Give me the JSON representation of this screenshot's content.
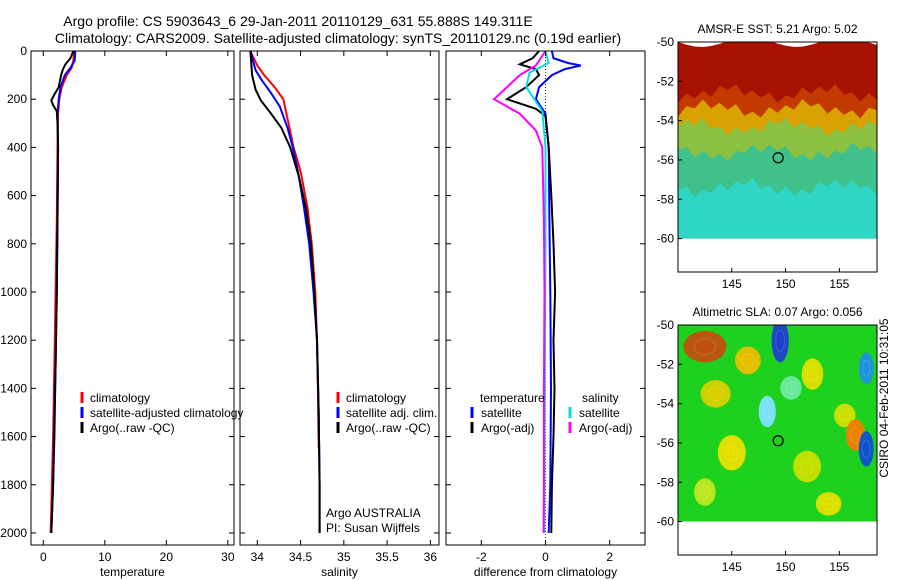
{
  "title": {
    "line1": "Argo profile: CS 5903643_6 29-Jan-2011 20110129_631 55.888S 149.311E",
    "line2": "Climatology: CARS2009. Satellite-adjusted climatology: synTS_20110129.nc (0.19d earlier)"
  },
  "credit": "CSIRO 04-Feb-2011 10:31:05",
  "chart_data": [
    {
      "type": "line",
      "panel": "temperature",
      "xlabel": "temperature",
      "xlim": [
        -2,
        31
      ],
      "ylim": [
        0,
        2050
      ],
      "y_reversed": true,
      "xticks": [
        "0",
        "10",
        "20",
        "30"
      ],
      "xtick_values": [
        0,
        10,
        20,
        30
      ],
      "yticks": [
        "0",
        "200",
        "400",
        "600",
        "800",
        "1000",
        "1200",
        "1400",
        "1600",
        "1800",
        "2000"
      ],
      "ytick_values": [
        0,
        200,
        400,
        600,
        800,
        1000,
        1200,
        1400,
        1600,
        1800,
        2000
      ],
      "legend_position": "lower-center",
      "series": [
        {
          "name": "climatology",
          "color": "#ff0000",
          "points": [
            [
              5.0,
              0
            ],
            [
              4.9,
              40
            ],
            [
              4.6,
              70
            ],
            [
              3.8,
              100
            ],
            [
              3.0,
              150
            ],
            [
              2.6,
              200
            ],
            [
              2.4,
              260
            ],
            [
              2.3,
              400
            ],
            [
              2.2,
              700
            ],
            [
              2.0,
              1000
            ],
            [
              1.8,
              1300
            ],
            [
              1.6,
              1600
            ],
            [
              1.4,
              1800
            ],
            [
              1.2,
              2000
            ]
          ]
        },
        {
          "name": "satellite-adjusted climatology",
          "color": "#0000ff",
          "points": [
            [
              5.2,
              0
            ],
            [
              5.1,
              40
            ],
            [
              4.4,
              70
            ],
            [
              3.5,
              100
            ],
            [
              2.8,
              150
            ],
            [
              2.5,
              200
            ],
            [
              2.3,
              260
            ],
            [
              2.4,
              400
            ],
            [
              2.3,
              700
            ],
            [
              2.2,
              1000
            ],
            [
              2.0,
              1300
            ],
            [
              1.8,
              1500
            ],
            [
              1.6,
              1800
            ],
            [
              1.3,
              2000
            ]
          ]
        },
        {
          "name": "Argo(..raw -QC)",
          "color": "#000000",
          "points": [
            [
              4.9,
              0
            ],
            [
              4.4,
              30
            ],
            [
              3.6,
              55
            ],
            [
              3.2,
              75
            ],
            [
              2.9,
              100
            ],
            [
              2.5,
              150
            ],
            [
              1.8,
              180
            ],
            [
              1.3,
              205
            ],
            [
              1.6,
              225
            ],
            [
              2.2,
              250
            ],
            [
              2.3,
              300
            ],
            [
              2.4,
              400
            ],
            [
              2.3,
              700
            ],
            [
              2.2,
              1000
            ],
            [
              2.0,
              1300
            ],
            [
              1.8,
              1600
            ],
            [
              1.6,
              1800
            ],
            [
              1.3,
              2000
            ]
          ]
        }
      ]
    },
    {
      "type": "line",
      "panel": "salinity",
      "xlabel": "salinity",
      "xlim": [
        33.8,
        36.1
      ],
      "ylim": [
        0,
        2050
      ],
      "y_reversed": true,
      "xticks": [
        "34",
        "34.5",
        "35",
        "35.5",
        "36"
      ],
      "xtick_values": [
        34,
        34.5,
        35,
        35.5,
        36
      ],
      "legend_position": "lower-center",
      "annotation": [
        "Argo AUSTRALIA",
        "PI: Susan Wijffels"
      ],
      "series": [
        {
          "name": "climatology",
          "color": "#ff0000",
          "points": [
            [
              33.92,
              0
            ],
            [
              34.0,
              60
            ],
            [
              34.08,
              100
            ],
            [
              34.2,
              150
            ],
            [
              34.3,
              200
            ],
            [
              34.36,
              300
            ],
            [
              34.42,
              400
            ],
            [
              34.5,
              500
            ],
            [
              34.58,
              650
            ],
            [
              34.63,
              800
            ],
            [
              34.67,
              1000
            ],
            [
              34.69,
              1200
            ],
            [
              34.7,
              1400
            ],
            [
              34.71,
              1650
            ]
          ]
        },
        {
          "name": "satellite adj. clim.",
          "color": "#0000ff",
          "points": [
            [
              33.92,
              0
            ],
            [
              33.98,
              80
            ],
            [
              34.05,
              120
            ],
            [
              34.15,
              170
            ],
            [
              34.26,
              230
            ],
            [
              34.35,
              320
            ],
            [
              34.41,
              400
            ],
            [
              34.47,
              500
            ],
            [
              34.54,
              650
            ],
            [
              34.6,
              800
            ],
            [
              34.65,
              1000
            ],
            [
              34.69,
              1200
            ],
            [
              34.71,
              1500
            ],
            [
              34.72,
              1800
            ],
            [
              34.72,
              2000
            ]
          ]
        },
        {
          "name": "Argo(..raw -QC)",
          "color": "#000000",
          "points": [
            [
              33.92,
              0
            ],
            [
              33.94,
              100
            ],
            [
              33.98,
              160
            ],
            [
              34.04,
              205
            ],
            [
              34.16,
              260
            ],
            [
              34.28,
              320
            ],
            [
              34.38,
              400
            ],
            [
              34.48,
              520
            ],
            [
              34.56,
              650
            ],
            [
              34.62,
              800
            ],
            [
              34.66,
              1000
            ],
            [
              34.69,
              1200
            ],
            [
              34.71,
              1500
            ],
            [
              34.72,
              1800
            ],
            [
              34.72,
              2000
            ]
          ]
        }
      ]
    },
    {
      "type": "line",
      "panel": "difference",
      "xlabel": "difference from climatology",
      "xlim": [
        -3.1,
        3.1
      ],
      "ylim": [
        0,
        2050
      ],
      "y_reversed": true,
      "xticks": [
        "-2",
        "0",
        "2"
      ],
      "xtick_values": [
        -2,
        0,
        2
      ],
      "legend_position": "lower-center",
      "legend_groups": [
        "temperature",
        "salinity"
      ],
      "series": [
        {
          "name": "satellite",
          "group": "temperature",
          "color": "#0000ff",
          "points": [
            [
              0.2,
              0
            ],
            [
              0.25,
              30
            ],
            [
              0.7,
              50
            ],
            [
              1.1,
              60
            ],
            [
              0.6,
              75
            ],
            [
              0.2,
              100
            ],
            [
              -0.2,
              150
            ],
            [
              -0.3,
              200
            ],
            [
              0.0,
              260
            ],
            [
              0.1,
              400
            ],
            [
              0.12,
              700
            ],
            [
              0.15,
              1000
            ],
            [
              0.17,
              1400
            ],
            [
              0.15,
              1800
            ],
            [
              0.1,
              2000
            ]
          ]
        },
        {
          "name": "Argo(-adj)",
          "group": "temperature",
          "color": "#000000",
          "points": [
            [
              -0.2,
              0
            ],
            [
              -0.4,
              30
            ],
            [
              -0.8,
              55
            ],
            [
              -0.3,
              75
            ],
            [
              -0.2,
              100
            ],
            [
              -0.6,
              150
            ],
            [
              -1.2,
              200
            ],
            [
              -0.3,
              240
            ],
            [
              0.0,
              270
            ],
            [
              0.1,
              400
            ],
            [
              0.18,
              600
            ],
            [
              0.25,
              800
            ],
            [
              0.3,
              1000
            ],
            [
              0.25,
              1200
            ],
            [
              0.28,
              1400
            ],
            [
              0.25,
              1600
            ],
            [
              0.2,
              1800
            ],
            [
              0.18,
              2000
            ]
          ]
        },
        {
          "name": "satellite",
          "group": "salinity",
          "color": "#00e0e0",
          "points": [
            [
              0.0,
              0
            ],
            [
              0.1,
              50
            ],
            [
              -0.5,
              90
            ],
            [
              -0.6,
              150
            ],
            [
              -0.1,
              250
            ],
            [
              0.0,
              400
            ],
            [
              0.0,
              800
            ],
            [
              -0.02,
              1200
            ],
            [
              -0.03,
              1600
            ],
            [
              -0.04,
              2000
            ]
          ]
        },
        {
          "name": "Argo(-adj)",
          "group": "salinity",
          "color": "#ff00ff",
          "points": [
            [
              0.0,
              0
            ],
            [
              -0.3,
              60
            ],
            [
              -0.8,
              100
            ],
            [
              -1.6,
              200
            ],
            [
              -0.8,
              260
            ],
            [
              -0.3,
              330
            ],
            [
              -0.1,
              400
            ],
            [
              -0.05,
              700
            ],
            [
              -0.03,
              1000
            ],
            [
              -0.05,
              1400
            ],
            [
              -0.05,
              1800
            ],
            [
              -0.06,
              2000
            ]
          ]
        }
      ]
    },
    {
      "type": "heatmap",
      "panel": "sst_map",
      "title": "AMSR-E SST: 5.21  Argo: 5.02",
      "xlim": [
        140,
        158.5
      ],
      "ylim": [
        -61.7,
        -50
      ],
      "data_ylim": [
        -60,
        -50
      ],
      "xticks": [
        "145",
        "150",
        "155"
      ],
      "xtick_values": [
        145,
        150,
        155
      ],
      "yticks": [
        "-50",
        "-52",
        "-54",
        "-56",
        "-58",
        "-60"
      ],
      "ytick_values": [
        -50,
        -52,
        -54,
        -56,
        -58,
        -60
      ],
      "marker": {
        "lon": 149.311,
        "lat": -55.888
      },
      "bands": [
        {
          "lat_top": -50,
          "color": "#a81000"
        },
        {
          "lat_top": -52.6,
          "color": "#c23a00"
        },
        {
          "lat_top": -53.4,
          "color": "#d8a000"
        },
        {
          "lat_top": -54.3,
          "color": "#8cc040"
        },
        {
          "lat_top": -55.6,
          "color": "#40c08a"
        },
        {
          "lat_top": -57.4,
          "color": "#30d6c4"
        }
      ]
    },
    {
      "type": "heatmap",
      "panel": "sla_map",
      "title": "Altimetric SLA: 0.07  Argo: 0.056",
      "xlim": [
        140,
        158.5
      ],
      "ylim": [
        -61.7,
        -50
      ],
      "data_ylim": [
        -60,
        -50
      ],
      "xticks": [
        "145",
        "150",
        "155"
      ],
      "xtick_values": [
        145,
        150,
        155
      ],
      "yticks": [
        "-50",
        "-52",
        "-54",
        "-56",
        "-58",
        "-60"
      ],
      "ytick_values": [
        -50,
        -52,
        -54,
        -56,
        -58,
        -60
      ],
      "background_color": "#1fd11f",
      "marker": {
        "lon": 149.311,
        "lat": -55.888
      },
      "blobs": [
        {
          "lon": 142.5,
          "lat": -51.1,
          "rx": 2.0,
          "ry": 0.8,
          "color": "#c05010"
        },
        {
          "lon": 149.5,
          "lat": -50.8,
          "rx": 0.8,
          "ry": 1.1,
          "color": "#2040d0"
        },
        {
          "lon": 146.5,
          "lat": -51.8,
          "rx": 1.2,
          "ry": 0.7,
          "color": "#e8c000"
        },
        {
          "lon": 152.5,
          "lat": -52.5,
          "rx": 1.0,
          "ry": 0.8,
          "color": "#e0e000"
        },
        {
          "lon": 157.5,
          "lat": -52.2,
          "rx": 0.7,
          "ry": 0.8,
          "color": "#2090e0"
        },
        {
          "lon": 143.5,
          "lat": -53.5,
          "rx": 1.4,
          "ry": 0.7,
          "color": "#d8d000"
        },
        {
          "lon": 150.5,
          "lat": -53.2,
          "rx": 1.0,
          "ry": 0.6,
          "color": "#70e8a0"
        },
        {
          "lon": 148.3,
          "lat": -54.4,
          "rx": 0.8,
          "ry": 0.8,
          "color": "#80e0ff"
        },
        {
          "lon": 155.5,
          "lat": -54.6,
          "rx": 1.0,
          "ry": 0.6,
          "color": "#d0e000"
        },
        {
          "lon": 145.0,
          "lat": -56.5,
          "rx": 1.3,
          "ry": 0.9,
          "color": "#e8e000"
        },
        {
          "lon": 156.5,
          "lat": -55.6,
          "rx": 0.9,
          "ry": 0.8,
          "color": "#f08000"
        },
        {
          "lon": 157.5,
          "lat": -56.3,
          "rx": 0.7,
          "ry": 0.9,
          "color": "#1050d0"
        },
        {
          "lon": 152.0,
          "lat": -57.2,
          "rx": 1.3,
          "ry": 0.8,
          "color": "#c8e000"
        },
        {
          "lon": 142.5,
          "lat": -58.5,
          "rx": 1.0,
          "ry": 0.7,
          "color": "#c0e820"
        },
        {
          "lon": 154.0,
          "lat": -59.1,
          "rx": 1.2,
          "ry": 0.6,
          "color": "#e0e000"
        }
      ]
    }
  ]
}
